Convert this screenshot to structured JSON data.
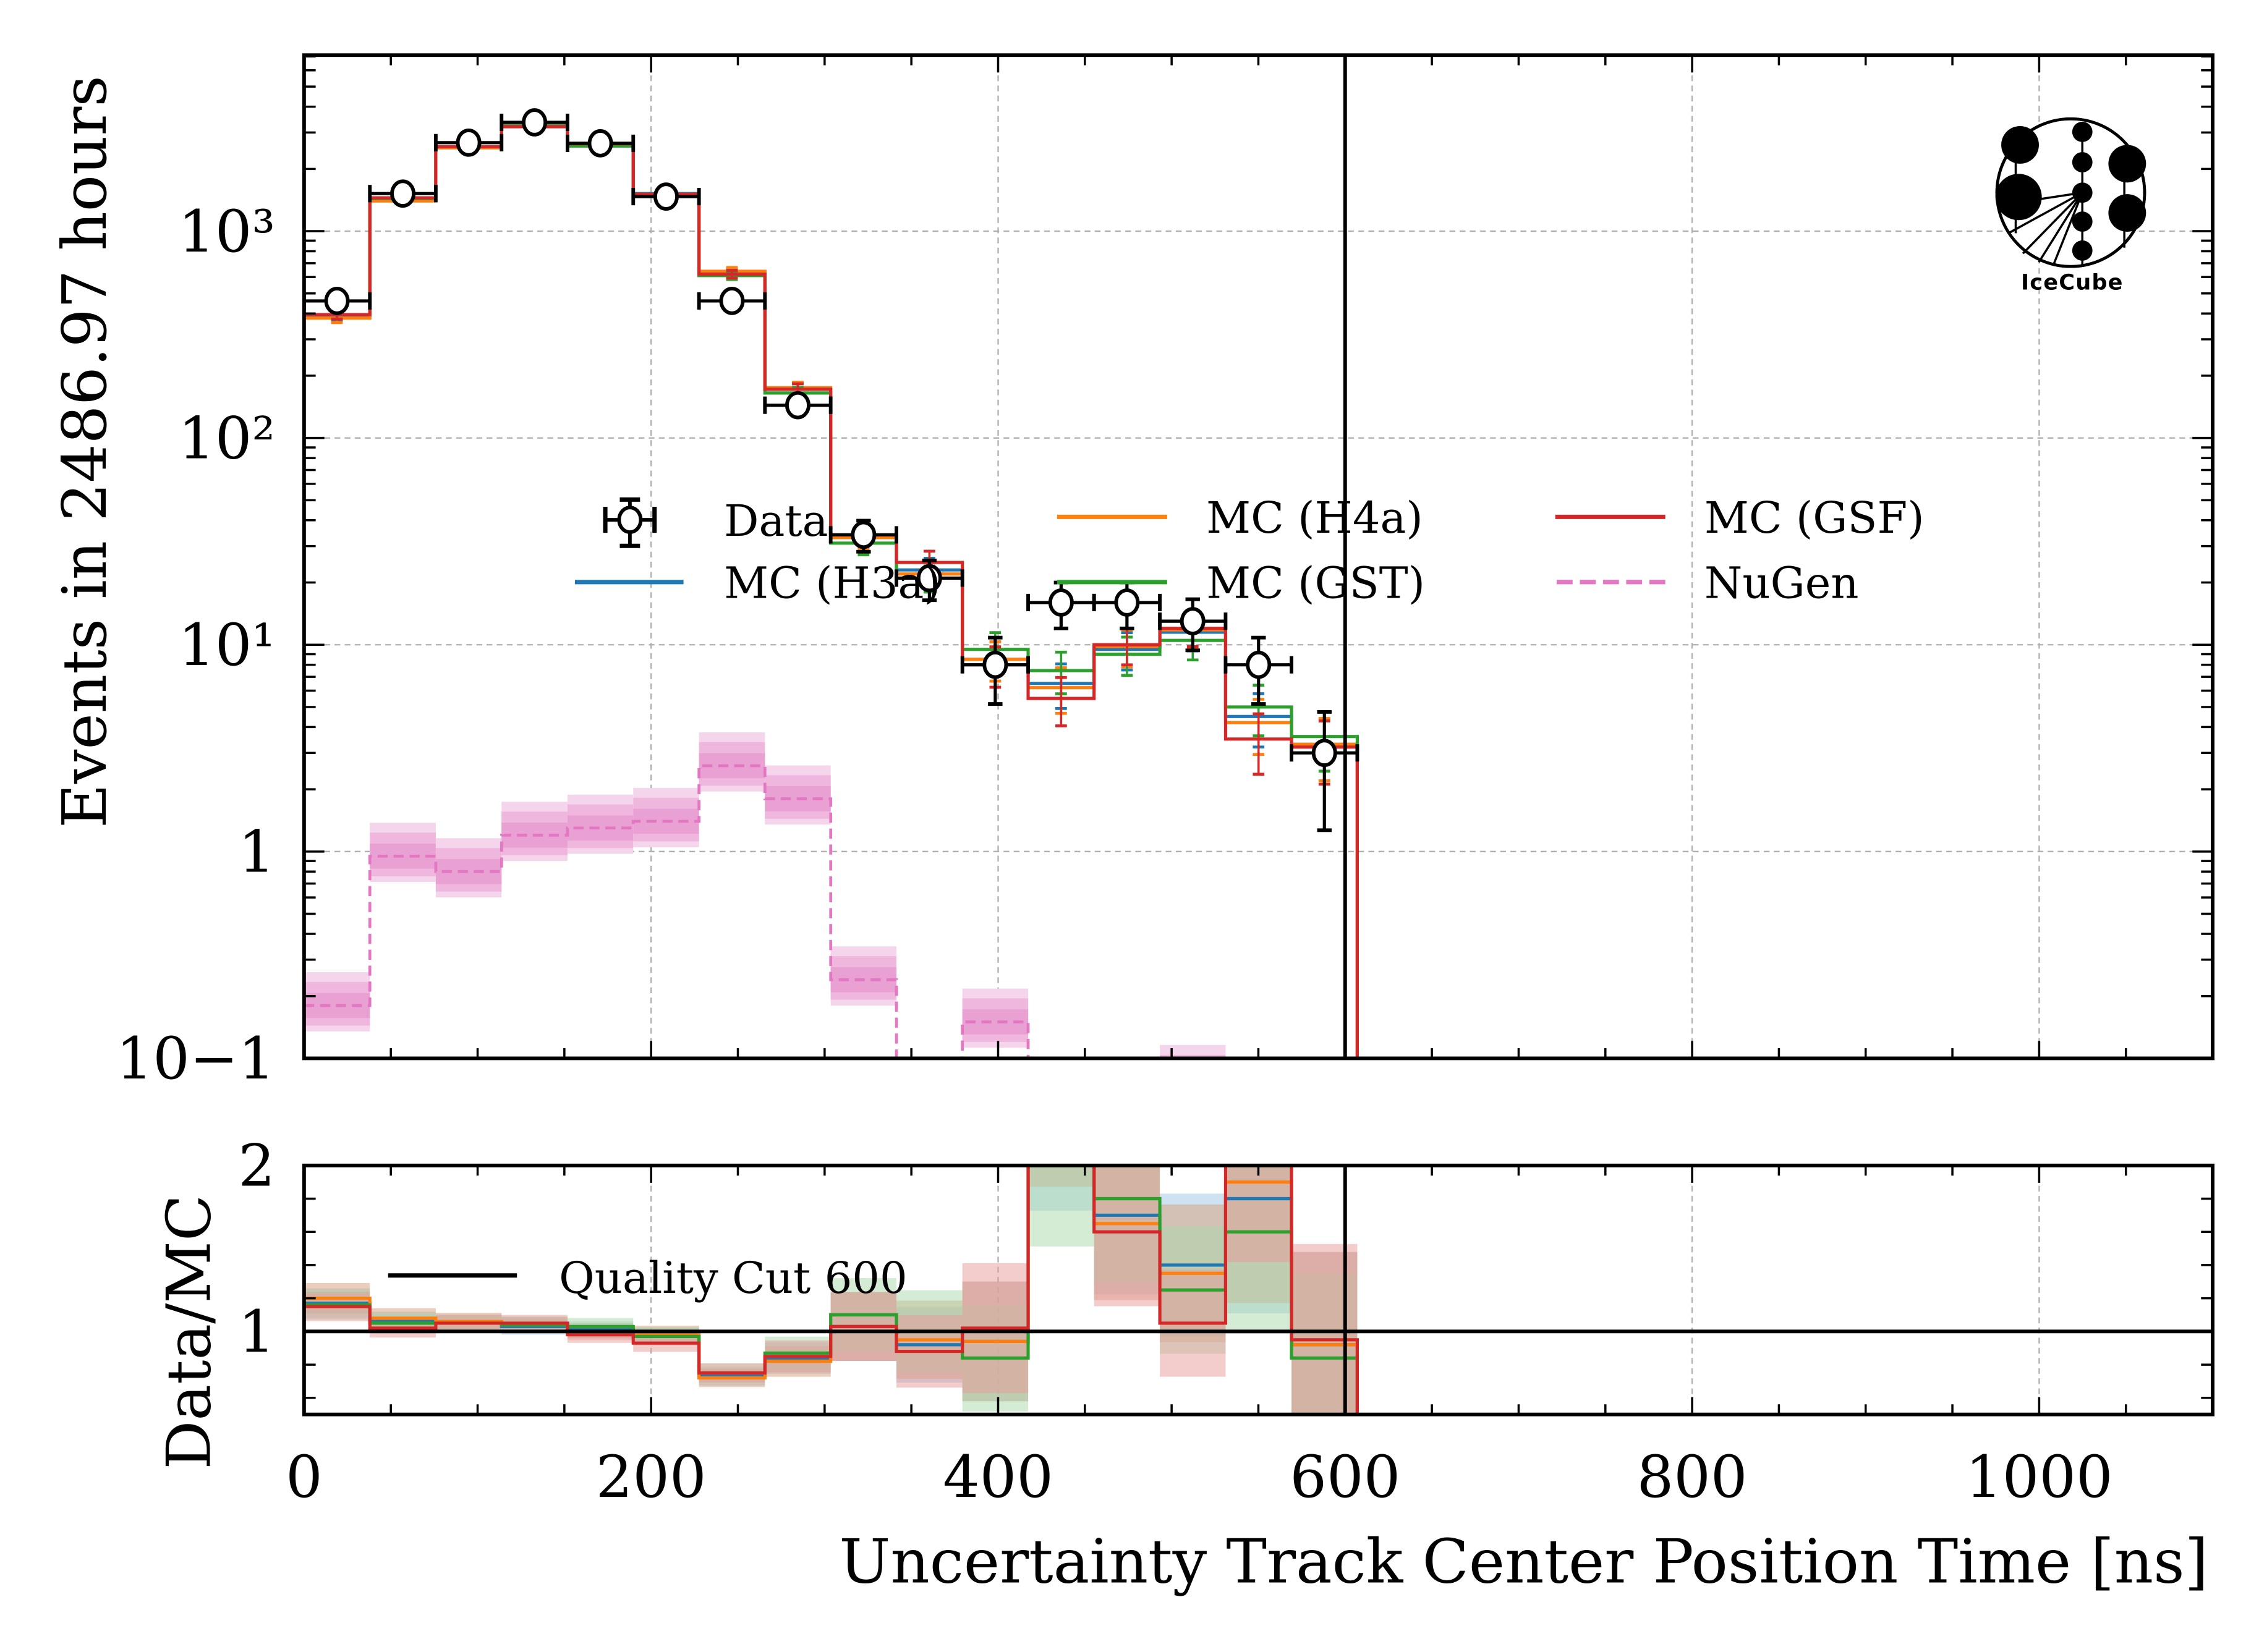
{
  "chart_data": {
    "type": "bar",
    "subtype": "step-histogram-with-ratio",
    "xlabel": "Uncertainty Track Center Position Time [ns]",
    "ylabel_top": "Events in 2486.97 hours",
    "ylabel_bottom": "Data/MC",
    "xlim": [
      0,
      1100
    ],
    "ylim_top": [
      0.1,
      7100
    ],
    "yscale_top": "log",
    "ylim_bottom": [
      0.5,
      2
    ],
    "x_ticks": [
      0,
      200,
      400,
      600,
      800,
      1000
    ],
    "x_tick_labels": [
      "0",
      "200",
      "400",
      "600",
      "800",
      "1000"
    ],
    "y_ticks_top": [
      0.1,
      1,
      10,
      100,
      1000
    ],
    "y_tick_labels_top": [
      "10−1",
      "1",
      "10¹",
      "10²",
      "10³"
    ],
    "y_ticks_bottom": [
      1,
      2
    ],
    "y_tick_labels_bottom": [
      "1",
      "2"
    ],
    "grid": true,
    "bin_edges": [
      0,
      37.9,
      75.9,
      113.8,
      151.8,
      189.7,
      227.6,
      265.6,
      303.5,
      341.4,
      379.4,
      417.3,
      455.3,
      493.2,
      531.1,
      569.1,
      607.0
    ],
    "series": [
      {
        "name": "Data",
        "kind": "points",
        "color": "#000000",
        "values": [
          460,
          1520,
          2680,
          3360,
          2660,
          1470,
          460,
          144,
          34,
          21,
          8,
          16,
          16,
          13,
          8,
          3
        ]
      },
      {
        "name": "MC (H3a)",
        "kind": "step",
        "color": "#1f77b4",
        "values": [
          390,
          1420,
          2550,
          3250,
          2620,
          1520,
          630,
          172,
          33,
          23,
          8.5,
          6.5,
          9.5,
          11.5,
          4.5,
          3.3
        ]
      },
      {
        "name": "MC (H4a)",
        "kind": "step",
        "color": "#ff7f0e",
        "values": [
          380,
          1400,
          2530,
          3230,
          2640,
          1500,
          640,
          175,
          33,
          22,
          8.5,
          6.2,
          9.8,
          11.8,
          4.2,
          3.3
        ]
      },
      {
        "name": "MC (GST)",
        "kind": "step",
        "color": "#2ca02c",
        "values": [
          395,
          1440,
          2560,
          3220,
          2580,
          1510,
          610,
          165,
          31,
          21,
          9.5,
          7.5,
          9.0,
          10.5,
          5.0,
          3.6
        ]
      },
      {
        "name": "MC (GSF)",
        "kind": "step",
        "color": "#d62728",
        "values": [
          395,
          1450,
          2560,
          3200,
          2650,
          1510,
          620,
          172,
          34,
          25,
          8.0,
          5.5,
          10.0,
          12.0,
          3.5,
          3.2
        ]
      },
      {
        "name": "NuGen",
        "kind": "dashed-step",
        "color": "#e377c2",
        "values": [
          0.18,
          0.95,
          0.8,
          1.2,
          1.3,
          1.4,
          2.6,
          1.8,
          0.24,
          0.05,
          0.15,
          0,
          0,
          0.08,
          0,
          0
        ]
      }
    ],
    "ratio_series": [
      {
        "name": "MC (H3a)",
        "color": "#1f77b4",
        "values": [
          1.17,
          1.06,
          1.05,
          1.03,
          1.01,
          0.97,
          0.73,
          0.84,
          1.03,
          0.92,
          0.94,
          2.4,
          1.7,
          1.4,
          1.8,
          0.92
        ]
      },
      {
        "name": "MC (H4a)",
        "color": "#ff7f0e",
        "values": [
          1.2,
          1.08,
          1.06,
          1.04,
          1.0,
          0.98,
          0.72,
          0.82,
          1.03,
          0.95,
          0.94,
          2.6,
          1.65,
          1.35,
          1.9,
          0.92
        ]
      },
      {
        "name": "MC (GST)",
        "color": "#2ca02c",
        "values": [
          1.16,
          1.05,
          1.05,
          1.04,
          1.03,
          0.97,
          0.75,
          0.87,
          1.1,
          1.0,
          0.84,
          2.1,
          1.8,
          1.25,
          1.6,
          0.84
        ]
      },
      {
        "name": "MC (GSF)",
        "color": "#d62728",
        "values": [
          1.15,
          1.02,
          1.05,
          1.05,
          0.98,
          0.93,
          0.75,
          0.85,
          1.03,
          0.88,
          1.02,
          2.9,
          1.6,
          1.05,
          2.3,
          0.95
        ]
      }
    ],
    "reference_line": {
      "label": "Quality Cut 600",
      "x": 600,
      "color": "#000000"
    },
    "legend": {
      "placement": "center",
      "entries": [
        "Data",
        "MC (H3a)",
        "MC (H4a)",
        "MC (GST)",
        "MC (GSF)",
        "NuGen"
      ]
    },
    "bottom_legend": {
      "placement": "upper-left",
      "entries": [
        "Quality Cut 600"
      ]
    },
    "logo": "IceCube"
  }
}
